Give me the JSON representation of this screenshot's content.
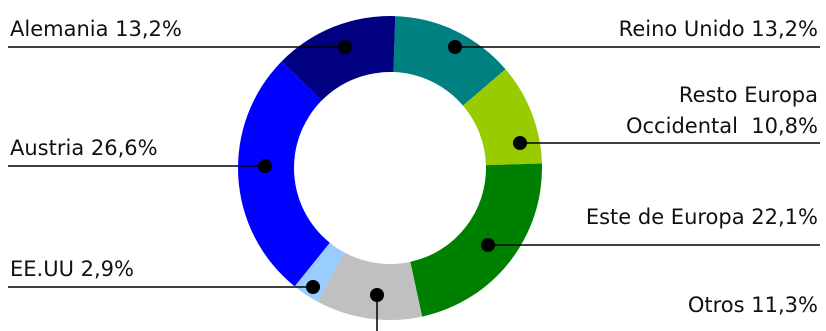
{
  "chart_data": {
    "type": "pie",
    "title": "",
    "series": [
      {
        "categories": [
          "Reino Unido",
          "Resto Europa Occidental",
          "Este de Europa",
          "Otros",
          "EE.UU",
          "Austria",
          "Alemania"
        ],
        "values": [
          13.2,
          10.8,
          22.1,
          11.3,
          2.9,
          26.6,
          13.2
        ],
        "colors": [
          "#008080",
          "#99cc00",
          "#008000",
          "#c0c0c0",
          "#99ccff",
          "#0000ff",
          "#000080"
        ]
      }
    ],
    "labels": [
      {
        "lines": [
          "Alemania 13,2%"
        ]
      },
      {
        "lines": [
          "Reino Unido 13,2%"
        ]
      },
      {
        "lines": [
          "Resto Europa",
          "Occidental  10,8%"
        ]
      },
      {
        "lines": [
          "Austria 26,6%"
        ]
      },
      {
        "lines": [
          "Este de Europa 22,1%"
        ]
      },
      {
        "lines": [
          "EE.UU 2,9%"
        ]
      },
      {
        "lines": [
          "Otros 11,3%"
        ]
      }
    ],
    "legend": "none",
    "donut": true
  }
}
